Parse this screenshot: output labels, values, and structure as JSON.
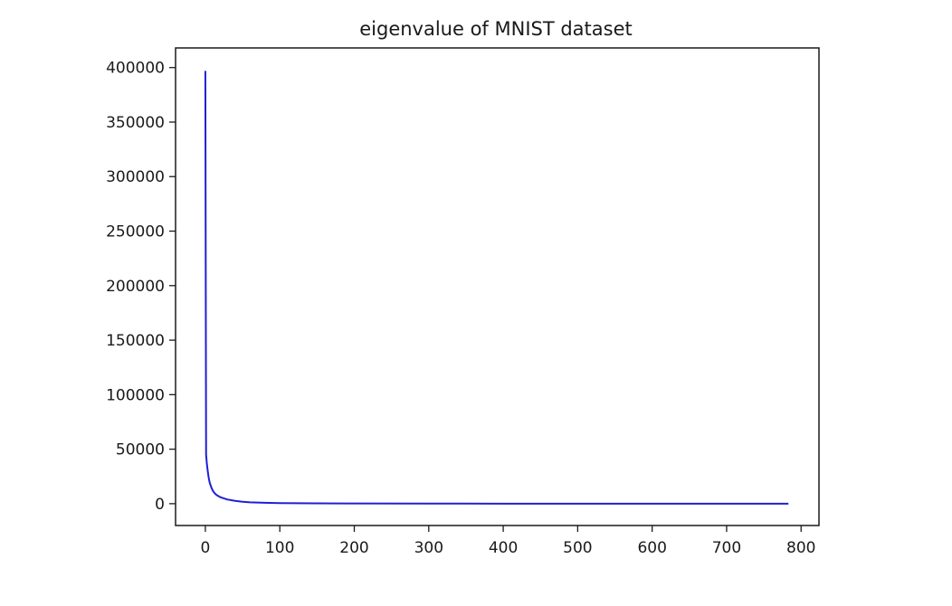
{
  "chart_data": {
    "type": "line",
    "title": "eigenvalue of MNIST dataset",
    "xlabel": "",
    "ylabel": "",
    "xlim": [
      -40,
      824
    ],
    "ylim": [
      -20000,
      418000
    ],
    "xticks": [
      0,
      100,
      200,
      300,
      400,
      500,
      600,
      700,
      800
    ],
    "yticks": [
      0,
      50000,
      100000,
      150000,
      200000,
      250000,
      300000,
      350000,
      400000
    ],
    "xtick_labels": [
      "0",
      "100",
      "200",
      "300",
      "400",
      "500",
      "600",
      "700",
      "800"
    ],
    "ytick_labels": [
      "0",
      "50000",
      "100000",
      "150000",
      "200000",
      "250000",
      "300000",
      "350000",
      "400000"
    ],
    "grid": false,
    "line_color": "#1f1fd6",
    "series": [
      {
        "x": [
          0,
          1,
          2,
          3,
          4,
          5,
          6,
          8,
          10,
          12,
          15,
          20,
          25,
          30,
          40,
          50,
          60,
          80,
          100,
          150,
          200,
          300,
          400,
          500,
          600,
          700,
          783
        ],
        "values": [
          397000,
          45000,
          37000,
          31000,
          26000,
          22000,
          19000,
          15000,
          12000,
          10000,
          8000,
          6000,
          4800,
          3800,
          2600,
          1800,
          1300,
          800,
          550,
          300,
          180,
          80,
          40,
          20,
          10,
          5,
          0
        ]
      }
    ]
  }
}
